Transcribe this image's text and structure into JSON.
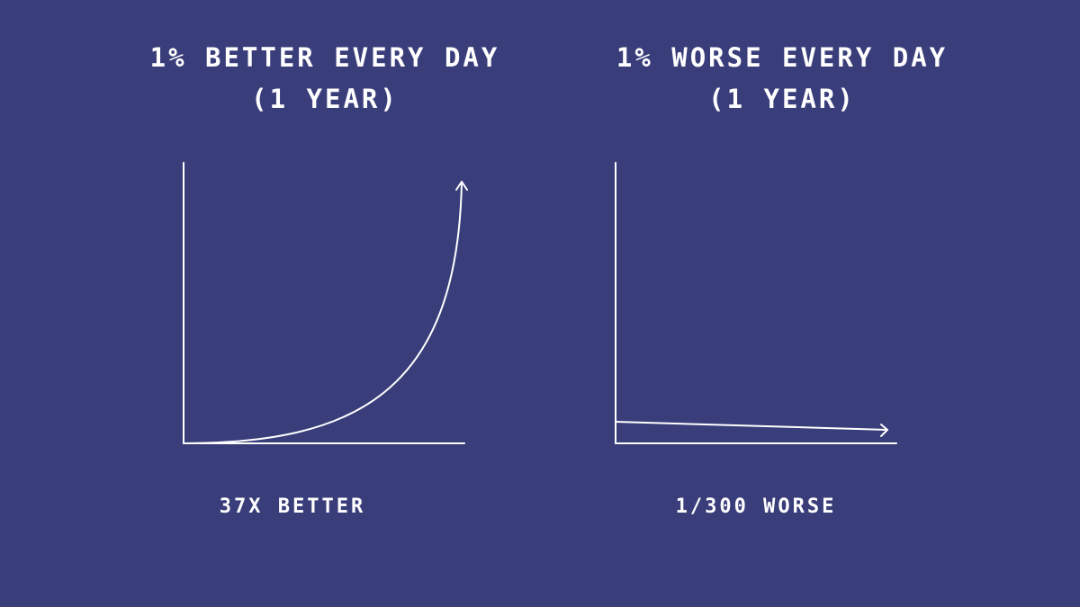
{
  "panels": [
    {
      "title": [
        "1% BETTER EVERY DAY",
        "(1 YEAR)"
      ],
      "caption": "37X BETTER"
    },
    {
      "title": [
        "1% WORSE EVERY DAY",
        "(1 YEAR)"
      ],
      "caption": "1/300 WORSE"
    }
  ]
}
